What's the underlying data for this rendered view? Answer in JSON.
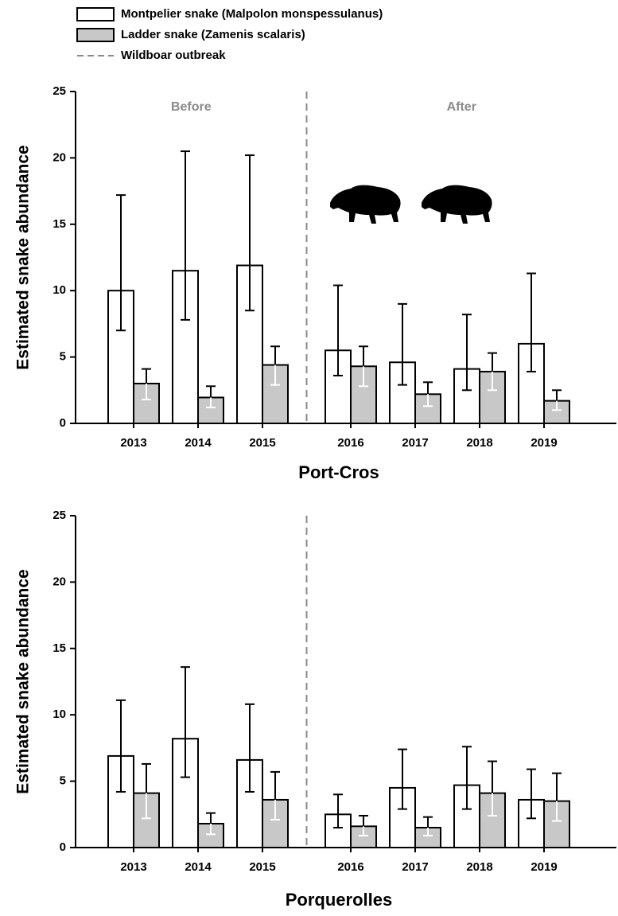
{
  "chart_data": [
    {
      "type": "bar",
      "title": "Port-Cros",
      "ylabel": "Estimated snake abundance",
      "categories": [
        "2013",
        "2014",
        "2015",
        "2016",
        "2017",
        "2018",
        "2019"
      ],
      "ylim": [
        0,
        25
      ],
      "yticks": [
        0,
        5,
        10,
        15,
        20,
        25
      ],
      "vline_after": "2015",
      "vline_label": "Wildboar outbreak",
      "vline_color": "#8a8a8a",
      "annotations": [
        "Before",
        "After"
      ],
      "series": [
        {
          "name": "Montpelier snake (Malpolon monspessulanus)",
          "color": "#ffffff",
          "error_inner_color": "#000000",
          "values": [
            10.0,
            11.5,
            11.9,
            5.5,
            4.6,
            4.1,
            6.0
          ],
          "lower": [
            7.0,
            7.8,
            8.5,
            3.6,
            2.9,
            2.5,
            3.9
          ],
          "upper": [
            17.2,
            20.5,
            20.2,
            10.4,
            9.0,
            8.2,
            11.3
          ]
        },
        {
          "name": "Ladder snake (Zamenis scalaris)",
          "color": "#c8c8c8",
          "error_inner_color": "#ffffff",
          "values": [
            3.0,
            1.95,
            4.4,
            4.3,
            2.2,
            3.9,
            1.7
          ],
          "lower": [
            1.8,
            1.2,
            2.9,
            2.8,
            1.3,
            2.5,
            1.0
          ],
          "upper": [
            4.1,
            2.8,
            5.8,
            5.8,
            3.1,
            5.3,
            2.5
          ]
        }
      ]
    },
    {
      "type": "bar",
      "title": "Porquerolles",
      "ylabel": "Estimated snake abundance",
      "categories": [
        "2013",
        "2014",
        "2015",
        "2016",
        "2017",
        "2018",
        "2019"
      ],
      "ylim": [
        0,
        25
      ],
      "yticks": [
        0,
        5,
        10,
        15,
        20,
        25
      ],
      "vline_after": "2015",
      "vline_color": "#8a8a8a",
      "series": [
        {
          "color": "#ffffff",
          "error_inner_color": "#000000",
          "values": [
            6.9,
            8.2,
            6.6,
            2.5,
            4.5,
            4.7,
            3.6
          ],
          "lower": [
            4.2,
            5.3,
            4.2,
            1.5,
            2.9,
            2.9,
            2.2
          ],
          "upper": [
            11.1,
            13.6,
            10.8,
            4.0,
            7.4,
            7.6,
            5.9
          ]
        },
        {
          "color": "#c8c8c8",
          "error_inner_color": "#ffffff",
          "values": [
            4.1,
            1.8,
            3.6,
            1.6,
            1.5,
            4.1,
            3.5
          ],
          "lower": [
            2.2,
            1.0,
            2.1,
            0.9,
            0.9,
            2.4,
            2.0
          ],
          "upper": [
            6.3,
            2.6,
            5.7,
            2.4,
            2.3,
            6.5,
            5.6
          ]
        }
      ]
    }
  ]
}
